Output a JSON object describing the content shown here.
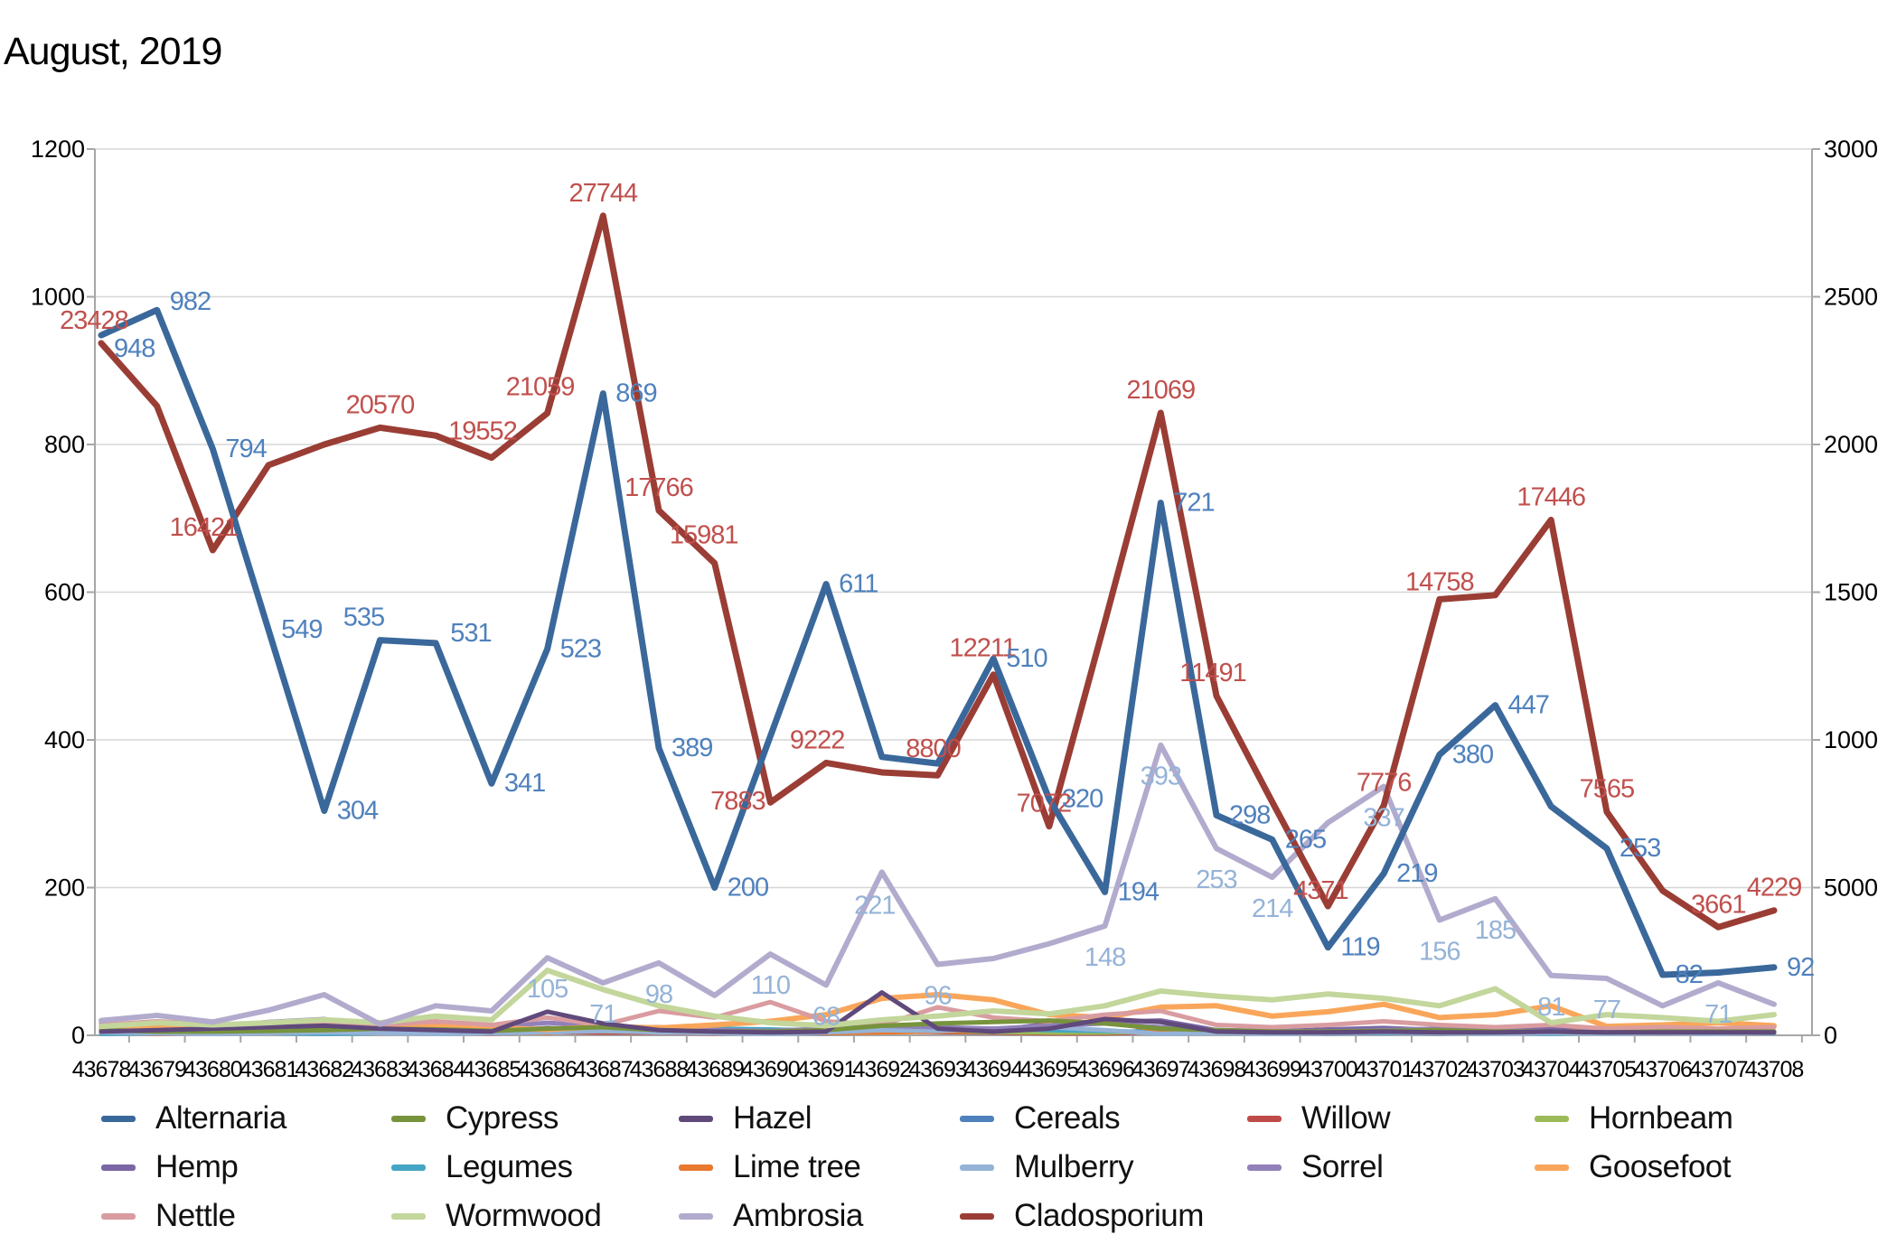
{
  "chart_data": {
    "type": "line",
    "title": "August, 2019",
    "grid": true,
    "legend_position": "bottom",
    "x_categories": [
      "43678",
      "43679",
      "43680",
      "43681",
      "43682",
      "43683",
      "43684",
      "43685",
      "43686",
      "43687",
      "43688",
      "43689",
      "43690",
      "43691",
      "43692",
      "43693",
      "43694",
      "43695",
      "43696",
      "43697",
      "43698",
      "43699",
      "43700",
      "43701",
      "43702",
      "43703",
      "43704",
      "43705",
      "43706",
      "43707",
      "43708"
    ],
    "left_axis": {
      "min": 0,
      "max": 1200,
      "step": 200,
      "ticks": [
        "0",
        "200",
        "400",
        "600",
        "800",
        "1000",
        "1200"
      ]
    },
    "right_axis": {
      "min": 0,
      "max": 30000,
      "step": 5000,
      "ticks": [
        "0",
        "5000",
        "10000",
        "15000",
        "20000",
        "25000",
        "30000"
      ]
    },
    "legend_order": [
      "Alternaria",
      "Cypress",
      "Hazel",
      "Cereals",
      "Willow",
      "Hornbeam",
      "Hemp",
      "Legumes",
      "Lime tree",
      "Mulberry",
      "Sorrel",
      "Goosefoot",
      "Nettle",
      "Wormwood",
      "Ambrosia",
      "Cladosporium"
    ],
    "series": [
      {
        "name": "Cereals",
        "axis": "left",
        "color": "#4F81BD",
        "width": 4,
        "values": [
          2,
          3,
          2,
          3,
          4,
          3,
          2,
          3,
          4,
          8,
          5,
          4,
          3,
          2,
          5,
          4,
          3,
          3,
          2,
          9,
          4,
          3,
          2,
          3,
          2,
          3,
          2,
          2,
          3,
          2,
          3
        ]
      },
      {
        "name": "Willow",
        "axis": "left",
        "color": "#BE4B48",
        "width": 4,
        "values": [
          3,
          2,
          2,
          3,
          3,
          4,
          3,
          2,
          4,
          3,
          3,
          2,
          3,
          4,
          5,
          4,
          3,
          2,
          2,
          4,
          3,
          2,
          3,
          3,
          3,
          2,
          3,
          2,
          3,
          2,
          3
        ]
      },
      {
        "name": "Hornbeam",
        "axis": "left",
        "color": "#9BBB59",
        "width": 4,
        "values": [
          5,
          4,
          3,
          4,
          5,
          4,
          3,
          4,
          6,
          5,
          4,
          3,
          3,
          4,
          6,
          5,
          4,
          3,
          3,
          5,
          4,
          3,
          3,
          4,
          3,
          3,
          3,
          3,
          3,
          3,
          4
        ]
      },
      {
        "name": "Hemp",
        "axis": "left",
        "color": "#7A66A5",
        "width": 5,
        "values": [
          6,
          12,
          9,
          8,
          12,
          7,
          5,
          5,
          10,
          7,
          5,
          4,
          3,
          5,
          12,
          9,
          6,
          16,
          18,
          20,
          7,
          5,
          8,
          10,
          7,
          5,
          9,
          4,
          4,
          7,
          4
        ]
      },
      {
        "name": "Legumes",
        "axis": "left",
        "color": "#45A5C4",
        "width": 5,
        "values": [
          2,
          3,
          4,
          3,
          2,
          3,
          4,
          3,
          5,
          7,
          6,
          9,
          8,
          6,
          5,
          7,
          9,
          7,
          6,
          4,
          7,
          5,
          4,
          3,
          4,
          3,
          2,
          3,
          8,
          4,
          3
        ]
      },
      {
        "name": "Lime tree",
        "axis": "left",
        "color": "#E8792E",
        "width": 5,
        "values": [
          9,
          6,
          4,
          3,
          5,
          4,
          6,
          4,
          3,
          9,
          11,
          7,
          5,
          3,
          4,
          5,
          7,
          14,
          18,
          7,
          5,
          3,
          4,
          5,
          3,
          4,
          3,
          9,
          5,
          4,
          5
        ]
      },
      {
        "name": "Mulberry",
        "axis": "left",
        "color": "#95B3D7",
        "width": 5,
        "values": [
          4,
          3,
          2,
          3,
          4,
          3,
          2,
          3,
          4,
          6,
          4,
          3,
          2,
          4,
          7,
          6,
          9,
          11,
          7,
          2,
          3,
          2,
          3,
          4,
          3,
          2,
          3,
          2,
          3,
          2,
          4
        ]
      },
      {
        "name": "Sorrel",
        "axis": "left",
        "color": "#9180BA",
        "width": 5,
        "values": [
          16,
          13,
          11,
          18,
          22,
          9,
          13,
          11,
          17,
          13,
          9,
          7,
          6,
          9,
          13,
          11,
          9,
          13,
          16,
          11,
          7,
          6,
          5,
          7,
          9,
          7,
          5,
          5,
          4,
          5,
          5
        ]
      },
      {
        "name": "Goosefoot",
        "axis": "left",
        "color": "#F9A65B",
        "width": 6,
        "values": [
          12,
          10,
          14,
          12,
          10,
          13,
          12,
          10,
          8,
          12,
          10,
          14,
          19,
          28,
          50,
          55,
          48,
          28,
          24,
          38,
          40,
          26,
          32,
          42,
          24,
          28,
          40,
          12,
          14,
          17,
          13
        ]
      },
      {
        "name": "Nettle",
        "axis": "left",
        "color": "#D99CA0",
        "width": 5,
        "values": [
          14,
          19,
          15,
          13,
          17,
          14,
          19,
          14,
          24,
          14,
          33,
          24,
          45,
          19,
          14,
          38,
          24,
          19,
          28,
          33,
          14,
          11,
          14,
          19,
          14,
          11,
          14,
          9,
          11,
          9,
          11
        ]
      },
      {
        "name": "Cypress",
        "axis": "left",
        "color": "#77933C",
        "width": 5,
        "values": [
          7,
          5,
          5,
          6,
          7,
          9,
          8,
          6,
          9,
          11,
          7,
          5,
          5,
          7,
          13,
          16,
          18,
          20,
          16,
          9,
          7,
          5,
          5,
          6,
          7,
          5,
          5,
          4,
          5,
          5,
          5
        ]
      },
      {
        "name": "Hazel",
        "axis": "left",
        "color": "#60497B",
        "width": 5,
        "values": [
          5,
          7,
          9,
          11,
          13,
          9,
          7,
          5,
          32,
          16,
          7,
          5,
          4,
          5,
          58,
          9,
          5,
          9,
          22,
          18,
          5,
          4,
          4,
          5,
          4,
          4,
          5,
          4,
          4,
          4,
          4
        ]
      },
      {
        "name": "Wormwood",
        "axis": "left",
        "color": "#C3D69B",
        "width": 6,
        "values": [
          12,
          17,
          14,
          17,
          21,
          17,
          26,
          21,
          88,
          62,
          40,
          26,
          17,
          13,
          21,
          26,
          33,
          29,
          40,
          60,
          53,
          48,
          56,
          50,
          40,
          63,
          17,
          28,
          24,
          19,
          28
        ]
      },
      {
        "name": "Ambrosia",
        "axis": "left",
        "color": "#B3ABCD",
        "width": 6,
        "label_color": "#95B3D7",
        "values": [
          20,
          27,
          18,
          34,
          55,
          15,
          40,
          33,
          105,
          71,
          98,
          54,
          110,
          68,
          221,
          96,
          104,
          124,
          148,
          393,
          253,
          214,
          288,
          337,
          156,
          185,
          81,
          77,
          40,
          71,
          42
        ],
        "labels": [
          null,
          null,
          null,
          null,
          null,
          null,
          null,
          null,
          "105",
          "71",
          "98",
          null,
          "110",
          "68",
          "221",
          "96",
          null,
          null,
          "148",
          "393",
          "253",
          "214",
          null,
          "337",
          "156",
          "185",
          "81",
          "77",
          null,
          "71",
          null
        ]
      },
      {
        "name": "Cladosporium",
        "axis": "right",
        "color": "#9A3D35",
        "width": 7,
        "label_color": "#C0504D",
        "values": [
          23428,
          21300,
          16421,
          19300,
          20000,
          20570,
          20300,
          19552,
          21059,
          27744,
          17766,
          15981,
          7883,
          9222,
          8900,
          8800,
          12211,
          7072,
          14000,
          21069,
          11491,
          7900,
          4371,
          7776,
          14758,
          14900,
          17446,
          7565,
          4900,
          3661,
          4229
        ],
        "labels": [
          "23428",
          null,
          "16421",
          null,
          null,
          "20570",
          null,
          "19552",
          "21059",
          "27744",
          "17766",
          "15981",
          "7883",
          "9222",
          null,
          "8800",
          "12211",
          "7072",
          null,
          "21069",
          "11491",
          null,
          "4371",
          "7776",
          "14758",
          null,
          "17446",
          "7565",
          null,
          "3661",
          "4229"
        ]
      },
      {
        "name": "Alternaria",
        "axis": "left",
        "color": "#3A689B",
        "width": 7,
        "label_color": "#4F81BD",
        "values": [
          948,
          982,
          794,
          549,
          304,
          535,
          531,
          341,
          523,
          869,
          389,
          200,
          405,
          611,
          377,
          368,
          510,
          320,
          194,
          721,
          298,
          265,
          119,
          219,
          380,
          447,
          310,
          253,
          82,
          85,
          92
        ],
        "labels": [
          "948",
          "982",
          "794",
          "549",
          "304",
          "535",
          "531",
          "341",
          "523",
          "869",
          "389",
          "200",
          null,
          "611",
          null,
          null,
          "510",
          "320",
          "194",
          "721",
          "298",
          "265",
          "119",
          "219",
          "380",
          "447",
          null,
          "253",
          "82",
          null,
          "92"
        ]
      }
    ]
  }
}
